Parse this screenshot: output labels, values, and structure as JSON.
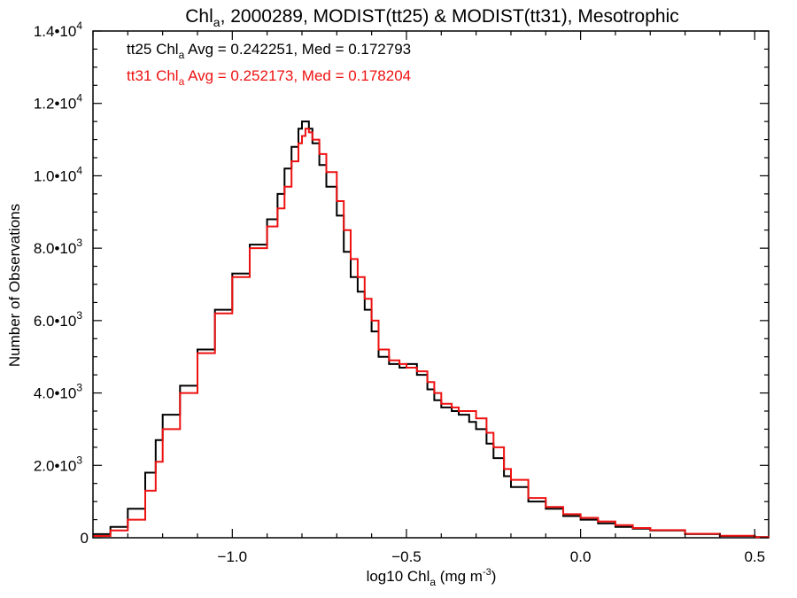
{
  "chart_data": {
    "type": "line",
    "step": true,
    "title": {
      "prefix": "Chl",
      "sub": "a",
      "suffix": ", 2000289, MODIST(tt25) & MODIST(tt31), Mesotrophic"
    },
    "xlabel": {
      "prefix": "log10 Chl",
      "sub": "a",
      "suffix": " (mg m",
      "sup": "-3",
      "end": ")"
    },
    "ylabel": "Number of Observations",
    "xlim": [
      -1.4,
      0.54
    ],
    "ylim": [
      0,
      14000
    ],
    "x_ticks": [
      {
        "value": -1.0,
        "label": "−1.0"
      },
      {
        "value": -0.5,
        "label": "−0.5"
      },
      {
        "value": 0.0,
        "label": "0.0"
      },
      {
        "value": 0.5,
        "label": "0.5"
      }
    ],
    "y_ticks": [
      {
        "value": 0,
        "mant": "0",
        "exp": ""
      },
      {
        "value": 2000,
        "mant": "2.0•10",
        "exp": "3"
      },
      {
        "value": 4000,
        "mant": "4.0•10",
        "exp": "3"
      },
      {
        "value": 6000,
        "mant": "6.0•10",
        "exp": "3"
      },
      {
        "value": 8000,
        "mant": "8.0•10",
        "exp": "3"
      },
      {
        "value": 10000,
        "mant": "1.0•10",
        "exp": "4"
      },
      {
        "value": 12000,
        "mant": "1.2•10",
        "exp": "4"
      },
      {
        "value": 14000,
        "mant": "1.4•10",
        "exp": "4"
      }
    ],
    "annotations": [
      {
        "prefix": "tt25 Chl",
        "sub": "a",
        "suffix": " Avg = 0.242251, Med = 0.172793",
        "color": "#000000"
      },
      {
        "prefix": "tt31 Chl",
        "sub": "a",
        "suffix": " Avg = 0.252173, Med = 0.178204",
        "color": "#ee1111"
      }
    ],
    "grid": false,
    "series": [
      {
        "name": "tt25",
        "color": "#000000",
        "x": [
          -1.4,
          -1.35,
          -1.3,
          -1.25,
          -1.22,
          -1.2,
          -1.15,
          -1.1,
          -1.05,
          -1.0,
          -0.95,
          -0.9,
          -0.87,
          -0.85,
          -0.83,
          -0.81,
          -0.8,
          -0.79,
          -0.78,
          -0.77,
          -0.75,
          -0.73,
          -0.7,
          -0.68,
          -0.66,
          -0.64,
          -0.62,
          -0.6,
          -0.58,
          -0.55,
          -0.52,
          -0.5,
          -0.47,
          -0.44,
          -0.42,
          -0.4,
          -0.37,
          -0.35,
          -0.32,
          -0.3,
          -0.27,
          -0.25,
          -0.22,
          -0.2,
          -0.15,
          -0.1,
          -0.05,
          0.0,
          0.05,
          0.1,
          0.15,
          0.2,
          0.3,
          0.4,
          0.5,
          0.54
        ],
        "y": [
          100,
          300,
          800,
          1800,
          2700,
          3400,
          4200,
          5200,
          6300,
          7300,
          8100,
          8800,
          9500,
          10200,
          10800,
          11300,
          11500,
          11500,
          11300,
          10900,
          10300,
          9700,
          8900,
          7900,
          7200,
          6800,
          6300,
          5700,
          5000,
          4800,
          4700,
          4800,
          4500,
          4100,
          3800,
          3600,
          3500,
          3400,
          3200,
          3000,
          2600,
          2200,
          1700,
          1400,
          1000,
          800,
          600,
          500,
          400,
          300,
          250,
          200,
          100,
          50,
          20,
          10
        ]
      },
      {
        "name": "tt31",
        "color": "#ee1111",
        "x": [
          -1.4,
          -1.35,
          -1.3,
          -1.25,
          -1.22,
          -1.2,
          -1.15,
          -1.1,
          -1.05,
          -1.0,
          -0.95,
          -0.9,
          -0.87,
          -0.85,
          -0.83,
          -0.81,
          -0.8,
          -0.79,
          -0.78,
          -0.77,
          -0.75,
          -0.73,
          -0.7,
          -0.68,
          -0.66,
          -0.64,
          -0.62,
          -0.6,
          -0.58,
          -0.55,
          -0.52,
          -0.5,
          -0.47,
          -0.44,
          -0.42,
          -0.4,
          -0.37,
          -0.35,
          -0.32,
          -0.3,
          -0.27,
          -0.25,
          -0.22,
          -0.2,
          -0.15,
          -0.1,
          -0.05,
          0.0,
          0.05,
          0.1,
          0.15,
          0.2,
          0.3,
          0.4,
          0.5,
          0.54
        ],
        "y": [
          50,
          200,
          500,
          1300,
          2100,
          3000,
          4000,
          5100,
          6200,
          7200,
          8000,
          8600,
          9100,
          9700,
          10400,
          10900,
          11100,
          11300,
          11200,
          11000,
          10600,
          10100,
          9300,
          8500,
          7700,
          7200,
          6600,
          6000,
          5200,
          4900,
          4800,
          4700,
          4600,
          4300,
          4000,
          3700,
          3600,
          3500,
          3500,
          3300,
          2900,
          2500,
          1900,
          1600,
          1100,
          850,
          650,
          550,
          450,
          350,
          270,
          210,
          110,
          55,
          20,
          10
        ]
      }
    ]
  }
}
